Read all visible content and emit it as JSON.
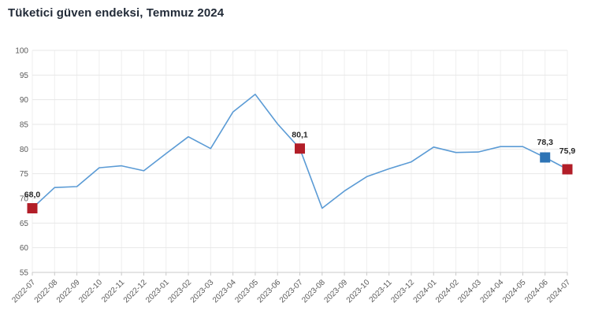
{
  "title": "Tüketici güven endeksi, Temmuz 2024",
  "colors": {
    "background": "#ffffff",
    "title_text": "#222b38",
    "line": "#5b9bd5",
    "marker_default": "#b21e28",
    "marker_highlight": "#2e74b5",
    "grid_h": "#e7e7e7",
    "grid_v": "#efefef",
    "axis": "#c9c9c9",
    "tick_text": "#595959",
    "annotation_text": "#262626"
  },
  "chart_data": {
    "type": "line",
    "title": "Tüketici güven endeksi, Temmuz 2024",
    "x": [
      "2022-07",
      "2022-08",
      "2022-09",
      "2022-10",
      "2022-11",
      "2022-12",
      "2023-01",
      "2023-02",
      "2023-03",
      "2023-04",
      "2023-05",
      "2023-06",
      "2023-07",
      "2023-08",
      "2023-09",
      "2023-10",
      "2023-11",
      "2023-12",
      "2024-01",
      "2024-02",
      "2024-03",
      "2024-04",
      "2024-05",
      "2024-06",
      "2024-07"
    ],
    "series": [
      {
        "name": "Tüketici güven endeksi",
        "values": [
          68.0,
          72.2,
          72.4,
          76.2,
          76.6,
          75.6,
          79.1,
          82.5,
          80.1,
          87.5,
          91.1,
          85.1,
          80.1,
          68.0,
          71.5,
          74.4,
          76.0,
          77.4,
          80.4,
          79.3,
          79.4,
          80.5,
          80.5,
          78.3,
          75.9
        ]
      }
    ],
    "ylim": [
      55,
      100
    ],
    "ytick_step": 5,
    "yticks": [
      "55",
      "60",
      "65",
      "70",
      "75",
      "80",
      "85",
      "90",
      "95",
      "100"
    ],
    "grid": true,
    "legend": "none",
    "xlabel": "",
    "ylabel": "",
    "annotations": [
      {
        "x": "2022-07",
        "value": 68.0,
        "label": "68,0",
        "marker": "red"
      },
      {
        "x": "2023-07",
        "value": 80.1,
        "label": "80,1",
        "marker": "red"
      },
      {
        "x": "2024-06",
        "value": 78.3,
        "label": "78,3",
        "marker": "blue"
      },
      {
        "x": "2024-07",
        "value": 75.9,
        "label": "75,9",
        "marker": "red"
      }
    ]
  }
}
